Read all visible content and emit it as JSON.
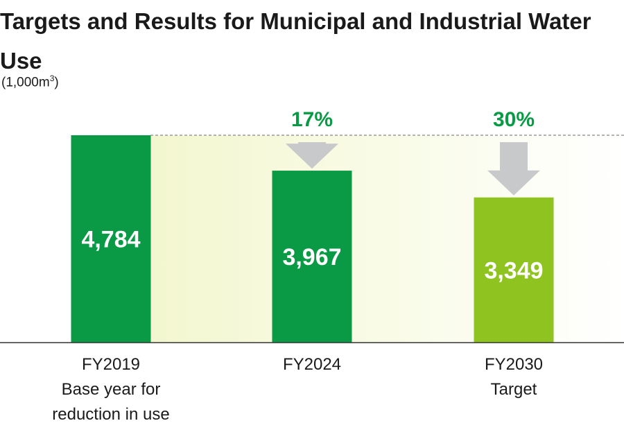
{
  "chart_data": {
    "type": "bar",
    "title": "Targets and Results for Municipal and Industrial Water Use",
    "unit_label": "(1,000m",
    "unit_superscript": "3",
    "unit_close": ")",
    "categories": [
      "FY2019",
      "FY2024",
      "FY2030"
    ],
    "category_sublabels": [
      [
        "Base year for",
        "reduction in use"
      ],
      [],
      [
        "Target"
      ]
    ],
    "values": [
      4784,
      3967,
      3349
    ],
    "value_labels": [
      "4,784",
      "3,967",
      "3,349"
    ],
    "reduction_labels": [
      "",
      "17%",
      "30%"
    ],
    "ylim": [
      0,
      4784
    ],
    "colors": {
      "bar": "#0a9a45",
      "target_bar": "#8fc31f",
      "label_green": "#0a9a45",
      "arrow": "#c8c9ca",
      "band": "#f5f8d6",
      "axis": "#333333"
    }
  }
}
